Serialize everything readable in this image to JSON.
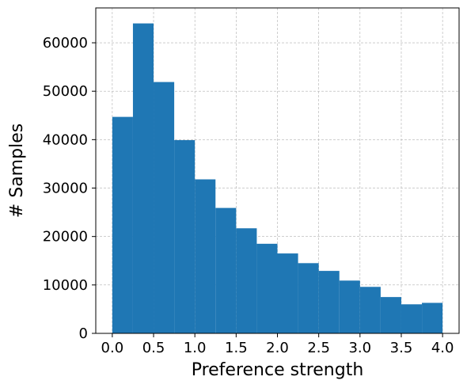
{
  "chart_data": {
    "type": "bar",
    "subtype": "histogram",
    "xlabel": "Preference strength",
    "ylabel": "# Samples",
    "bin_edges": [
      0.0,
      0.25,
      0.5,
      0.75,
      1.0,
      1.25,
      1.5,
      1.75,
      2.0,
      2.25,
      2.5,
      2.75,
      3.0,
      3.25,
      3.5,
      3.75,
      4.0
    ],
    "values": [
      44700,
      64000,
      51900,
      39900,
      31800,
      25900,
      21700,
      18500,
      16500,
      14500,
      12900,
      10900,
      9600,
      7500,
      6000,
      6300
    ],
    "xlim": [
      -0.2,
      4.2
    ],
    "ylim": [
      0,
      67200
    ],
    "xticks": [
      0.0,
      0.5,
      1.0,
      1.5,
      2.0,
      2.5,
      3.0,
      3.5,
      4.0
    ],
    "xtick_labels": [
      "0.0",
      "0.5",
      "1.0",
      "1.5",
      "2.0",
      "2.5",
      "3.0",
      "3.5",
      "4.0"
    ],
    "yticks": [
      0,
      10000,
      20000,
      30000,
      40000,
      50000,
      60000
    ],
    "ytick_labels": [
      "0",
      "10000",
      "20000",
      "30000",
      "40000",
      "50000",
      "60000"
    ],
    "grid": true,
    "bar_color": "#1f77b4"
  }
}
